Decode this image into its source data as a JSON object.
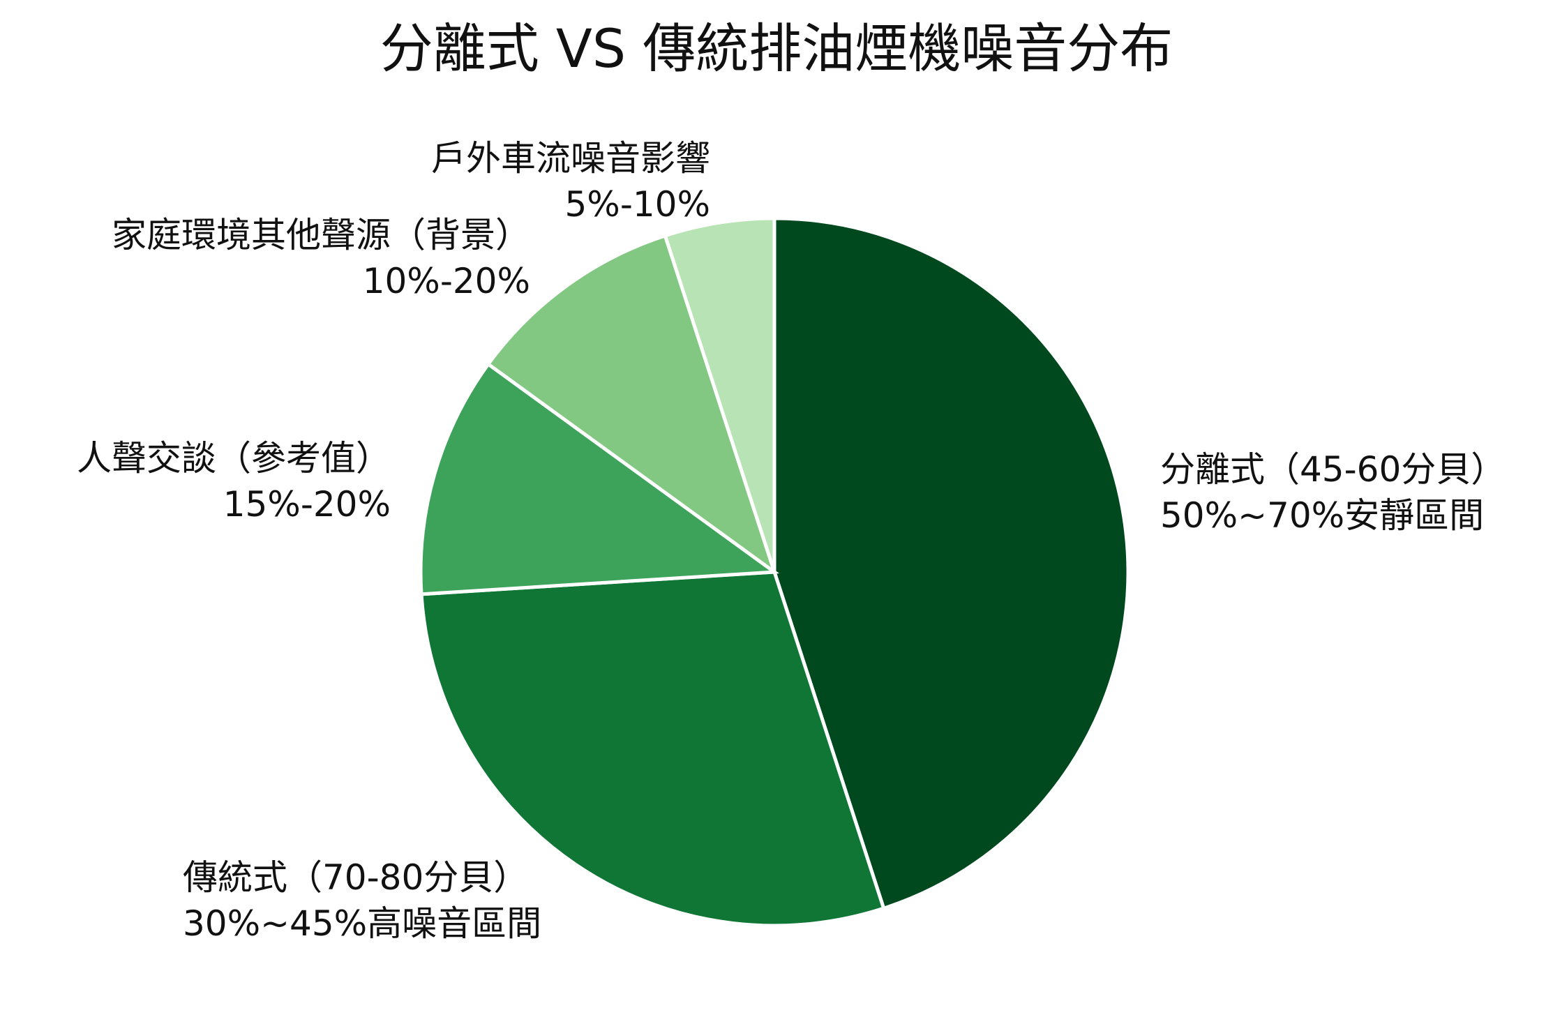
{
  "chart_data": {
    "type": "pie",
    "title": "分離式 VS 傳統排油煙機噪音分布",
    "slices": [
      {
        "label_line1": "分離式（45-60分貝）",
        "label_line2": "50%~70%安靜區間",
        "value": 45,
        "color": "#00491e"
      },
      {
        "label_line1": "傳統式（70-80分貝）",
        "label_line2": "30%~45%高噪音區間",
        "value": 29,
        "color": "#0f7636"
      },
      {
        "label_line1": "人聲交談（參考值）",
        "label_line2": "15%-20%",
        "value": 11,
        "color": "#3da35a"
      },
      {
        "label_line1": "家庭環境其他聲源（背景）",
        "label_line2": "10%-20%",
        "value": 10,
        "color": "#82c882"
      },
      {
        "label_line1": "戶外車流噪音影響",
        "label_line2": "5%-10%",
        "value": 5,
        "color": "#b8e3b4"
      }
    ],
    "start_angle": "top",
    "direction": "clockwise",
    "legend": "none"
  }
}
